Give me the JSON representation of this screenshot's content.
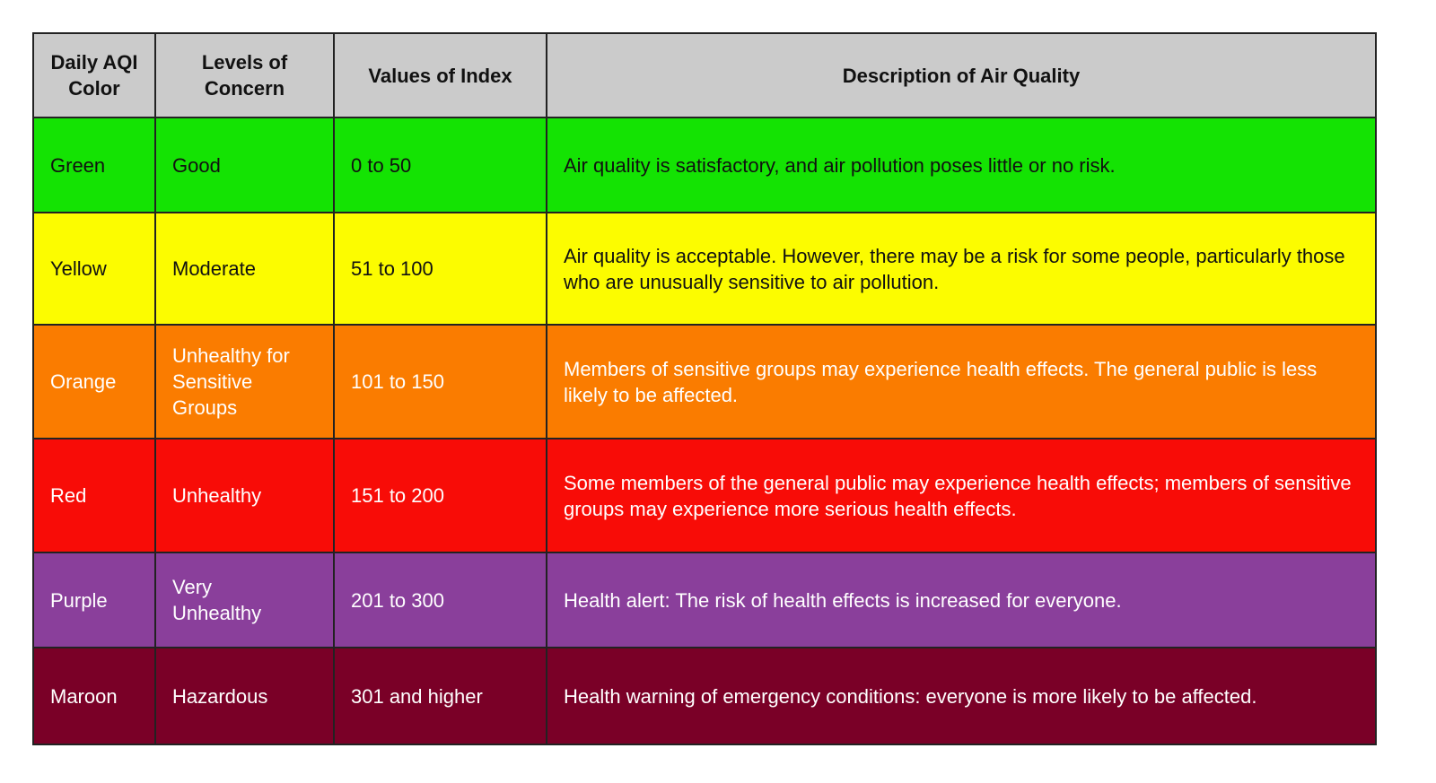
{
  "table": {
    "header": [
      "Daily AQI Color",
      "Levels of Concern",
      "Values of Index",
      "Description of Air Quality"
    ],
    "rows": [
      [
        "Green",
        "Good",
        "0 to 50",
        "Air quality is satisfactory, and air pollution poses little or no risk."
      ],
      [
        "Yellow",
        "Moderate",
        "51 to 100",
        "Air quality is acceptable. However, there may be a risk for some people, particularly those who are unusually sensitive to air pollution."
      ],
      [
        "Orange",
        "Unhealthy for Sensitive Groups",
        "101 to 150",
        "Members of sensitive groups may experience health effects. The general public is less likely to be affected."
      ],
      [
        "Red",
        "Unhealthy",
        "151 to 200",
        "Some members of the general public may experience health effects; members of sensitive groups may experience more serious health effects."
      ],
      [
        "Purple",
        "Very Unhealthy",
        "201 to 300",
        "Health alert: The risk of health effects is increased for everyone."
      ],
      [
        "Maroon",
        "Hazardous",
        "301 and higher",
        "Health warning of emergency conditions: everyone is more likely to be affected."
      ]
    ]
  }
}
